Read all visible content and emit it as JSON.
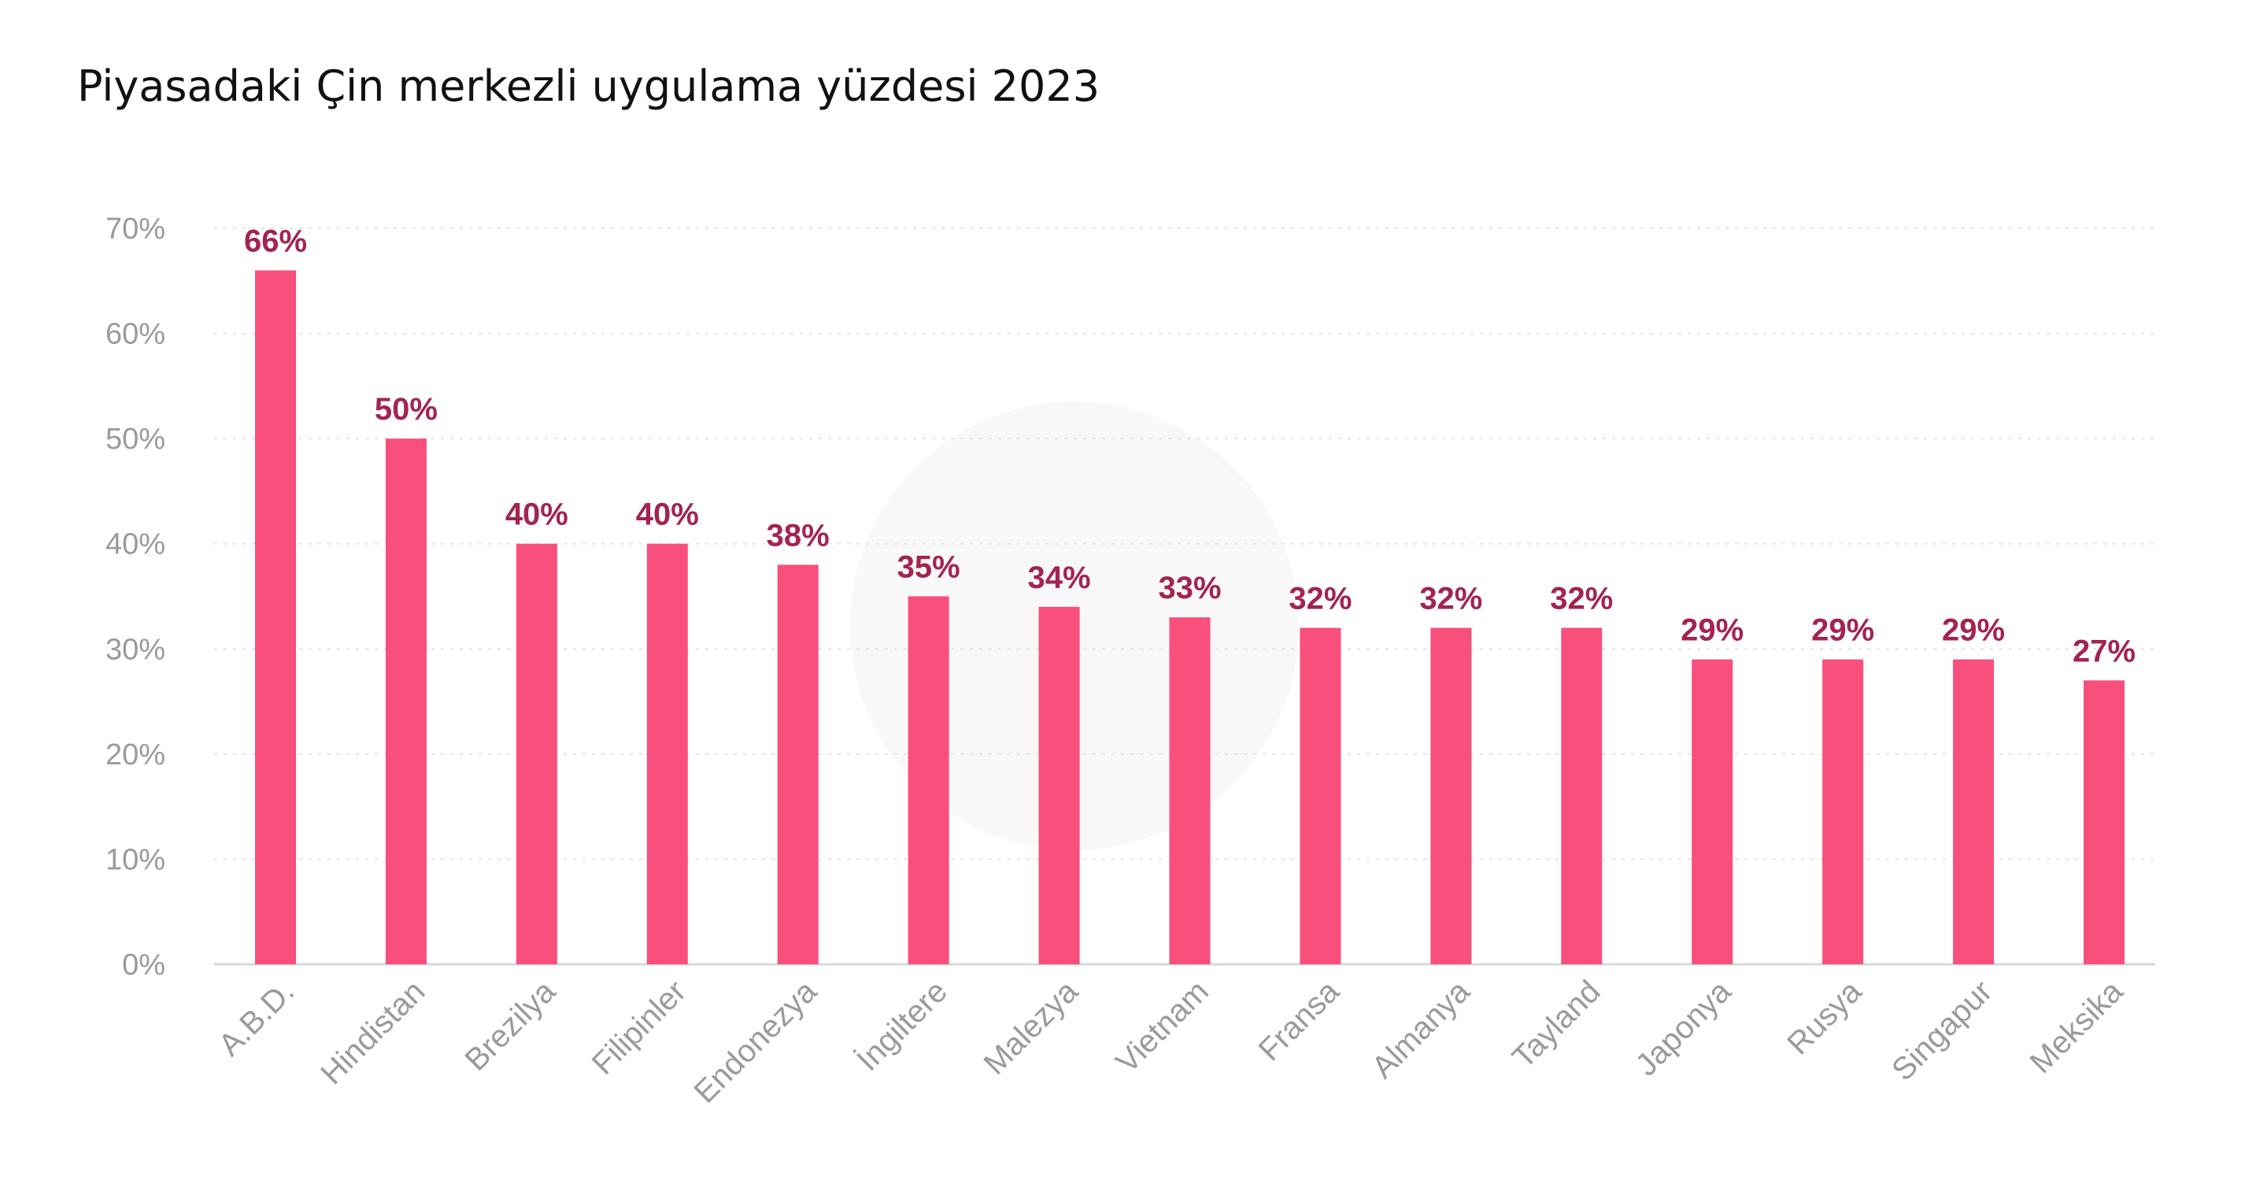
{
  "title": "Piyasadaki Çin merkezli uygulama yüzdesi 2023",
  "chart_data": {
    "type": "bar",
    "title": "Piyasadaki Çin merkezli uygulama yüzdesi 2023",
    "categories": [
      "A.B.D.",
      "Hindistan",
      "Brezilya",
      "Filipinler",
      "Endonezya",
      "İngiltere",
      "Malezya",
      "Vietnam",
      "Fransa",
      "Almanya",
      "Tayland",
      "Japonya",
      "Rusya",
      "Singapur",
      "Meksika"
    ],
    "values": [
      66,
      50,
      40,
      40,
      38,
      35,
      34,
      33,
      32,
      32,
      32,
      29,
      29,
      29,
      27
    ],
    "data_labels": [
      "66%",
      "50%",
      "40%",
      "40%",
      "38%",
      "35%",
      "34%",
      "33%",
      "32%",
      "32%",
      "32%",
      "29%",
      "29%",
      "29%",
      "27%"
    ],
    "y_ticks": [
      "0%",
      "10%",
      "20%",
      "30%",
      "40%",
      "50%",
      "60%",
      "70%"
    ],
    "ylim": [
      0,
      70
    ],
    "grid": true,
    "bar_color": "#f94f7c",
    "label_color": "#a3244f"
  }
}
